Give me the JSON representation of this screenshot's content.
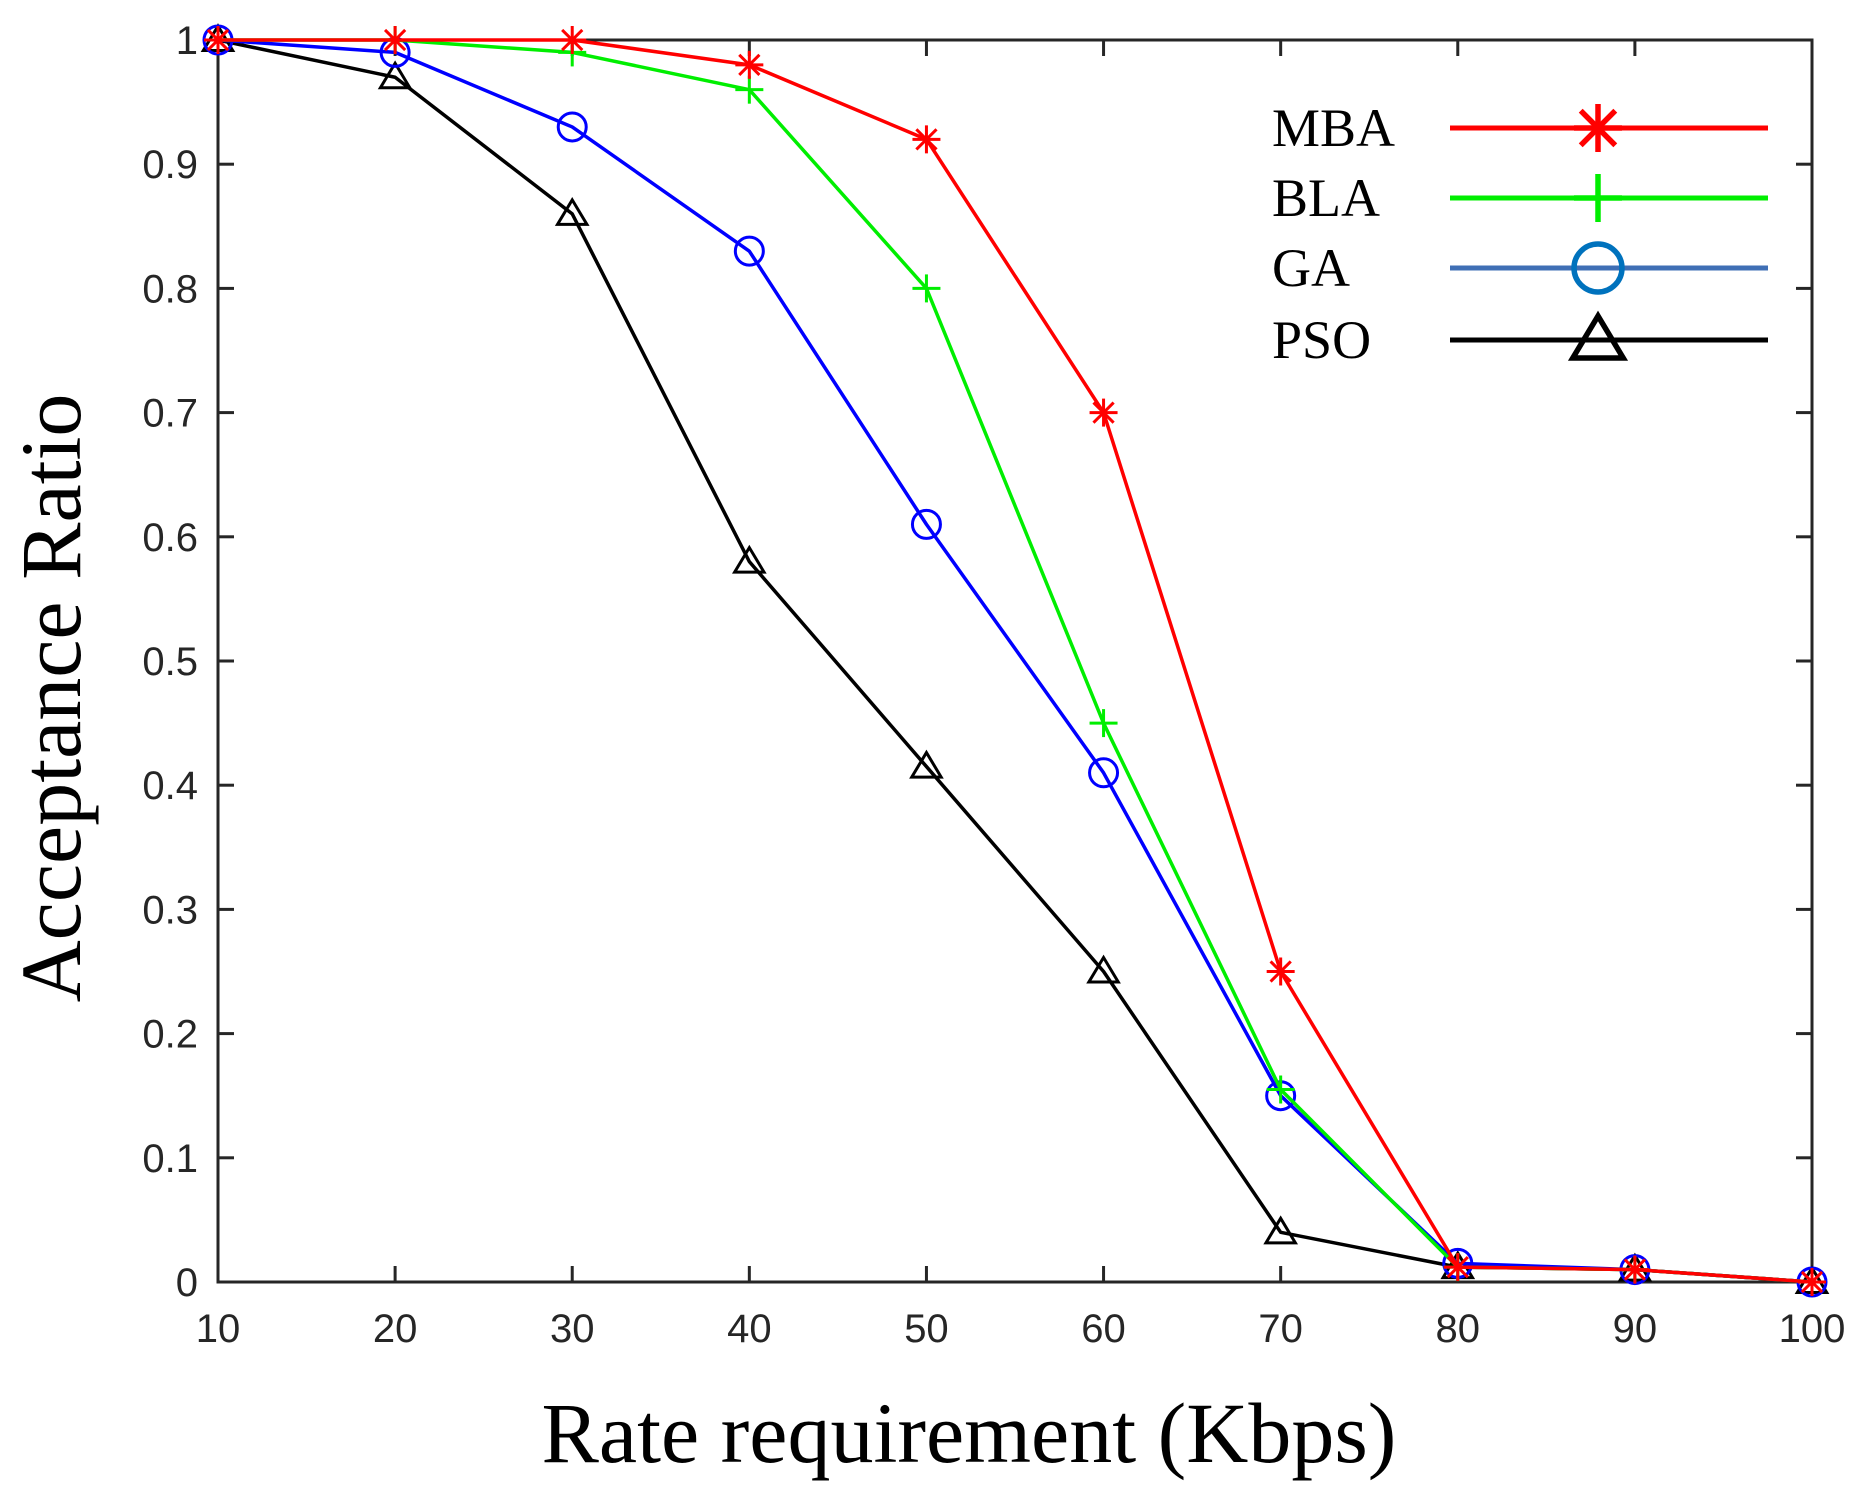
{
  "chart_data": {
    "type": "line",
    "title": "",
    "xlabel": "Rate requirement (Kbps)",
    "ylabel": "Acceptance Ratio",
    "x": [
      10,
      20,
      30,
      40,
      50,
      60,
      70,
      80,
      90,
      100
    ],
    "xlim": [
      10,
      100
    ],
    "ylim": [
      0,
      1
    ],
    "xticks": [
      10,
      20,
      30,
      40,
      50,
      60,
      70,
      80,
      90,
      100
    ],
    "yticks": [
      0,
      0.1,
      0.2,
      0.3,
      0.4,
      0.5,
      0.6,
      0.7,
      0.8,
      0.9,
      1
    ],
    "xtick_labels": [
      "10",
      "20",
      "30",
      "40",
      "50",
      "60",
      "70",
      "80",
      "90",
      "100"
    ],
    "ytick_labels": [
      "0",
      "0.1",
      "0.2",
      "0.3",
      "0.4",
      "0.5",
      "0.6",
      "0.7",
      "0.8",
      "0.9",
      "1"
    ],
    "grid": false,
    "legend_position": "top-right",
    "series": [
      {
        "name": "PSO",
        "color": "#000000",
        "legend_color": "#000000",
        "marker": "triangle",
        "values": [
          1.0,
          0.97,
          0.86,
          0.58,
          0.415,
          0.25,
          0.04,
          0.012,
          0.01,
          0.0
        ]
      },
      {
        "name": "GA",
        "color": "#0000ff",
        "legend_color": "#3f6fb5",
        "legend_marker_color": "#0072bd",
        "marker": "circle",
        "values": [
          1.0,
          0.99,
          0.93,
          0.83,
          0.61,
          0.41,
          0.15,
          0.015,
          0.01,
          0.0
        ]
      },
      {
        "name": "BLA",
        "color": "#00ee00",
        "legend_color": "#00ee00",
        "marker": "plus",
        "values": [
          1.0,
          1.0,
          0.99,
          0.96,
          0.8,
          0.45,
          0.155,
          0.012,
          0.01,
          0.0
        ]
      },
      {
        "name": "MBA",
        "color": "#ff0000",
        "legend_color": "#ff0000",
        "marker": "asterisk",
        "values": [
          1.0,
          1.0,
          1.0,
          0.98,
          0.92,
          0.7,
          0.25,
          0.012,
          0.01,
          0.0
        ]
      }
    ],
    "legend_order": [
      "MBA",
      "BLA",
      "GA",
      "PSO"
    ]
  }
}
